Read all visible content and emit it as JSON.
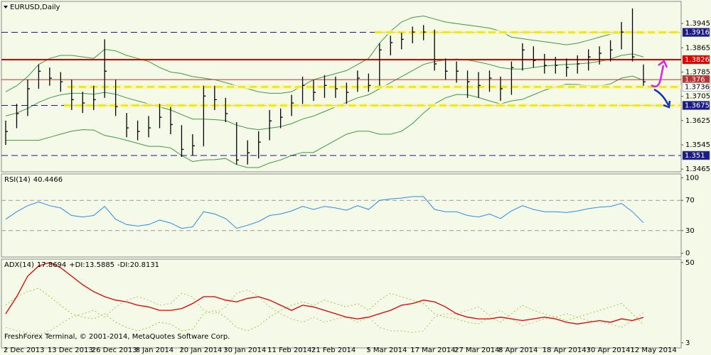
{
  "chart_data": [
    {
      "type": "ohlc",
      "title": "EURUSD,Daily",
      "categories": [
        "2 Dec 2013",
        null,
        null,
        null,
        "13 Dec 2013",
        null,
        null,
        null,
        "26 Dec 2013",
        null,
        null,
        null,
        "8 Jan 2014",
        null,
        null,
        null,
        "20 Jan 2014",
        null,
        null,
        null,
        "30 Jan 2014",
        null,
        null,
        null,
        "11 Feb 2014",
        null,
        null,
        null,
        "21 Feb 2014",
        null,
        null,
        null,
        null,
        "5 Mar 2014",
        null,
        null,
        null,
        "17 Mar 2014",
        null,
        null,
        null,
        "27 Mar 2014",
        null,
        null,
        null,
        "8 Apr 2014",
        null,
        null,
        null,
        "18 Apr 2014",
        null,
        null,
        null,
        "30 Apr 2014",
        null,
        null,
        null,
        "12 May 2014",
        null
      ],
      "high": [
        1.3625,
        1.368,
        1.376,
        1.381,
        1.38,
        1.3785,
        1.376,
        1.372,
        1.374,
        1.3893,
        1.376,
        1.365,
        1.3625,
        1.364,
        1.368,
        1.367,
        1.361,
        1.358,
        1.374,
        1.374,
        1.37,
        1.362,
        1.356,
        1.359,
        1.366,
        1.3665,
        1.371,
        1.377,
        1.376,
        1.3775,
        1.377,
        1.375,
        1.379,
        1.378,
        1.388,
        1.3905,
        1.3915,
        1.3935,
        1.394,
        1.3925,
        1.383,
        1.382,
        1.379,
        1.3785,
        1.379,
        1.377,
        1.382,
        1.388,
        1.387,
        1.3845,
        1.3835,
        1.383,
        1.384,
        1.386,
        1.387,
        1.389,
        1.395,
        1.3995,
        1.381
      ],
      "low": [
        1.3545,
        1.36,
        1.364,
        1.373,
        1.374,
        1.372,
        1.366,
        1.365,
        1.366,
        1.37,
        1.364,
        1.357,
        1.356,
        1.357,
        1.36,
        1.358,
        1.3505,
        1.351,
        1.354,
        1.366,
        1.362,
        1.348,
        1.348,
        1.35,
        1.356,
        1.36,
        1.364,
        1.368,
        1.369,
        1.37,
        1.37,
        1.368,
        1.372,
        1.372,
        1.374,
        1.384,
        1.386,
        1.388,
        1.389,
        1.379,
        1.376,
        1.375,
        1.37,
        1.37,
        1.372,
        1.369,
        1.371,
        1.379,
        1.38,
        1.378,
        1.378,
        1.377,
        1.378,
        1.379,
        1.381,
        1.382,
        1.386,
        1.382,
        1.374
      ],
      "close": [
        1.3589,
        1.3648,
        1.373,
        1.3788,
        1.3765,
        1.3753,
        1.3694,
        1.3683,
        1.3694,
        1.3788,
        1.3671,
        1.3601,
        1.3589,
        1.3601,
        1.3636,
        1.3612,
        1.353,
        1.3542,
        1.3706,
        1.3694,
        1.3648,
        1.3495,
        1.3519,
        1.3554,
        1.3624,
        1.3636,
        1.3683,
        1.3741,
        1.3718,
        1.3741,
        1.373,
        1.3718,
        1.3765,
        1.3741,
        1.3858,
        1.3882,
        1.3893,
        1.3917,
        1.3917,
        1.3812,
        1.3788,
        1.3788,
        1.3753,
        1.3741,
        1.3765,
        1.373,
        1.38,
        1.3858,
        1.3823,
        1.3807,
        1.3807,
        1.38,
        1.3812,
        1.3835,
        1.3847,
        1.3858,
        1.3917,
        1.3835,
        1.3753
      ],
      "color": "#000000",
      "bands": {
        "color": "#3f9a3f",
        "upper": [
          1.372,
          1.374,
          1.377,
          1.381,
          1.383,
          1.384,
          1.384,
          1.3835,
          1.383,
          1.386,
          1.3855,
          1.384,
          1.383,
          1.382,
          1.38,
          1.3785,
          1.378,
          1.377,
          1.3765,
          1.376,
          1.375,
          1.374,
          1.373,
          1.372,
          1.3715,
          1.3715,
          1.372,
          1.374,
          1.376,
          1.377,
          1.378,
          1.379,
          1.381,
          1.383,
          1.388,
          1.392,
          1.395,
          1.3965,
          1.397,
          1.396,
          1.395,
          1.3945,
          1.394,
          1.3935,
          1.393,
          1.392,
          1.39,
          1.3895,
          1.389,
          1.3885,
          1.388,
          1.3875,
          1.388,
          1.389,
          1.39,
          1.391,
          1.3915,
          1.3918,
          1.3912
        ],
        "middle": [
          1.364,
          1.365,
          1.3665,
          1.3685,
          1.37,
          1.371,
          1.3715,
          1.3715,
          1.3712,
          1.3718,
          1.3712,
          1.37,
          1.369,
          1.368,
          1.367,
          1.366,
          1.3645,
          1.363,
          1.363,
          1.3628,
          1.3625,
          1.361,
          1.36,
          1.3595,
          1.36,
          1.3605,
          1.3615,
          1.363,
          1.364,
          1.3655,
          1.367,
          1.3685,
          1.37,
          1.371,
          1.373,
          1.375,
          1.377,
          1.379,
          1.381,
          1.382,
          1.3825,
          1.3828,
          1.3825,
          1.3818,
          1.381,
          1.38,
          1.3795,
          1.3795,
          1.38,
          1.3805,
          1.3808,
          1.381,
          1.3812,
          1.3815,
          1.382,
          1.3828,
          1.384,
          1.3845,
          1.3835
        ],
        "lower": [
          1.356,
          1.356,
          1.356,
          1.356,
          1.357,
          1.358,
          1.359,
          1.3595,
          1.3594,
          1.3576,
          1.3569,
          1.356,
          1.355,
          1.354,
          1.354,
          1.3535,
          1.351,
          1.349,
          1.3495,
          1.3496,
          1.35,
          1.348,
          1.347,
          1.347,
          1.3485,
          1.3495,
          1.351,
          1.352,
          1.352,
          1.354,
          1.356,
          1.358,
          1.359,
          1.359,
          1.358,
          1.358,
          1.359,
          1.3615,
          1.365,
          1.368,
          1.37,
          1.3711,
          1.371,
          1.3701,
          1.369,
          1.368,
          1.369,
          1.3695,
          1.371,
          1.3725,
          1.3736,
          1.3745,
          1.3744,
          1.374,
          1.374,
          1.3746,
          1.3765,
          1.3772,
          1.3758
        ]
      },
      "levels": [
        {
          "value": 1.3916,
          "color": "#1a1a8c",
          "style": "dashed",
          "label_color": "#ffffff"
        },
        {
          "value": 1.3826,
          "color": "#e00000",
          "style": "solid",
          "label_color": "#ffffff"
        },
        {
          "value": 1.376,
          "color": "#c03030",
          "style": "solid",
          "label_color": "#ffffff"
        },
        {
          "value": 1.3736,
          "color": "#ffffff",
          "style": "none",
          "label_color": "#000000"
        },
        {
          "value": 1.3675,
          "color": "#1a1a8c",
          "style": "dashed",
          "label_color": "#ffffff"
        },
        {
          "value": 1.351,
          "color": "#1a1a8c",
          "style": "dashed",
          "label_color": "#ffffff"
        }
      ],
      "zones": [
        {
          "value": 1.3916
        },
        {
          "value": 1.3736
        },
        {
          "value": 1.3675
        }
      ],
      "zone_color": "#f2e600",
      "ylim": [
        1.3456,
        1.4018
      ],
      "yticks": [
        1.3465,
        1.3545,
        1.3625,
        1.3705,
        1.3785,
        1.3865,
        1.3945
      ]
    },
    {
      "type": "line",
      "title": "RSI(14)",
      "values": [
        45,
        55,
        63,
        68,
        63,
        60,
        50,
        48,
        50,
        62,
        45,
        38,
        36,
        38,
        44,
        40,
        33,
        35,
        55,
        52,
        46,
        33,
        37,
        42,
        50,
        52,
        56,
        62,
        58,
        62,
        60,
        57,
        63,
        58,
        70,
        72,
        73,
        75,
        75,
        58,
        55,
        55,
        50,
        48,
        52,
        46,
        56,
        63,
        58,
        55,
        55,
        54,
        56,
        59,
        61,
        62,
        66,
        55,
        40.4466
      ],
      "color": "#2a8cf0",
      "levels": [
        70,
        30
      ],
      "ylim": [
        -5,
        105
      ],
      "yticks": [
        0,
        30,
        70,
        100
      ]
    },
    {
      "type": "line",
      "series": [
        {
          "name": "ADX(14)",
          "color": "#e00000",
          "style": "solid",
          "values": [
            20,
            30,
            42,
            48,
            50,
            47,
            42,
            37,
            33,
            30,
            28,
            27,
            25,
            24,
            22,
            22,
            23,
            26,
            30,
            30,
            28,
            27,
            29,
            30,
            28,
            25,
            22,
            25,
            24,
            22,
            20,
            18,
            17,
            18,
            20,
            22,
            25,
            26,
            28,
            27,
            24,
            20,
            18,
            17,
            17,
            18,
            17,
            16,
            17,
            18,
            17,
            15,
            14,
            15,
            16,
            15,
            17,
            16,
            17.8694
          ]
        },
        {
          "name": "+DI:",
          "color": "#9acd32",
          "style": "dotted",
          "values": [
            25,
            30,
            33,
            35,
            30,
            25,
            20,
            18,
            17,
            20,
            15,
            12,
            10,
            12,
            15,
            14,
            10,
            11,
            20,
            22,
            18,
            12,
            10,
            13,
            18,
            22,
            25,
            27,
            25,
            28,
            26,
            24,
            26,
            22,
            28,
            32,
            30,
            28,
            26,
            20,
            18,
            17,
            15,
            14,
            18,
            15,
            20,
            25,
            22,
            20,
            18,
            16,
            18,
            20,
            22,
            24,
            26,
            20,
            13.5885
          ]
        },
        {
          "name": "-DI:",
          "color": "#c8b878",
          "style": "dotted",
          "values": [
            12,
            10,
            9,
            8,
            10,
            14,
            18,
            20,
            22,
            18,
            24,
            28,
            30,
            28,
            25,
            26,
            32,
            30,
            22,
            20,
            24,
            32,
            34,
            30,
            24,
            20,
            17,
            15,
            18,
            15,
            17,
            18,
            15,
            18,
            12,
            10,
            10,
            9,
            10,
            18,
            20,
            20,
            22,
            24,
            19,
            22,
            17,
            13,
            15,
            17,
            18,
            20,
            18,
            16,
            15,
            14,
            12,
            16,
            20.8131
          ]
        }
      ],
      "ylim": [
        0,
        52
      ],
      "yticks": [
        50,
        3
      ]
    }
  ],
  "footer": "FreshForex Terminal, © 2001-2014, MetaQuotes Software Corp."
}
